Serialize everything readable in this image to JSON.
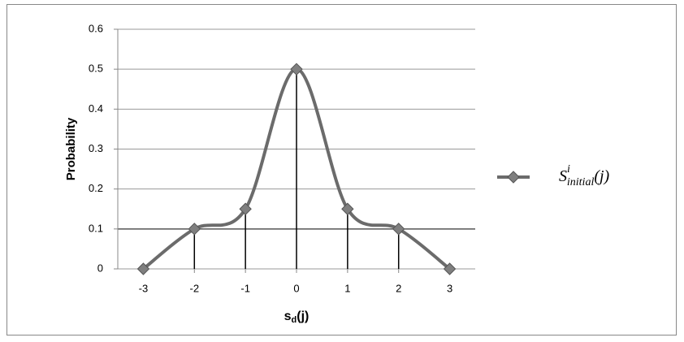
{
  "chart_data": {
    "type": "line",
    "x": [
      -3,
      -2,
      -1,
      0,
      1,
      2,
      3
    ],
    "series": [
      {
        "name": [
          "S",
          "i",
          "initial",
          "(j)"
        ],
        "color": "#6b6b6b",
        "values": [
          0,
          0.1,
          0.15,
          0.5,
          0.15,
          0.1,
          0
        ]
      }
    ],
    "xlim": [
      -3.5,
      3.5
    ],
    "xticks": [
      -3,
      -2,
      -1,
      0,
      1,
      2,
      3
    ],
    "ylim": [
      0,
      0.6
    ],
    "yticks": [
      0,
      0.1,
      0.2,
      0.3,
      0.4,
      0.5,
      0.6
    ],
    "y_label": "Probability",
    "x_label": [
      "s",
      "d",
      "(j)"
    ],
    "grid": true,
    "smooth": true,
    "stems": true,
    "legend": "right"
  }
}
